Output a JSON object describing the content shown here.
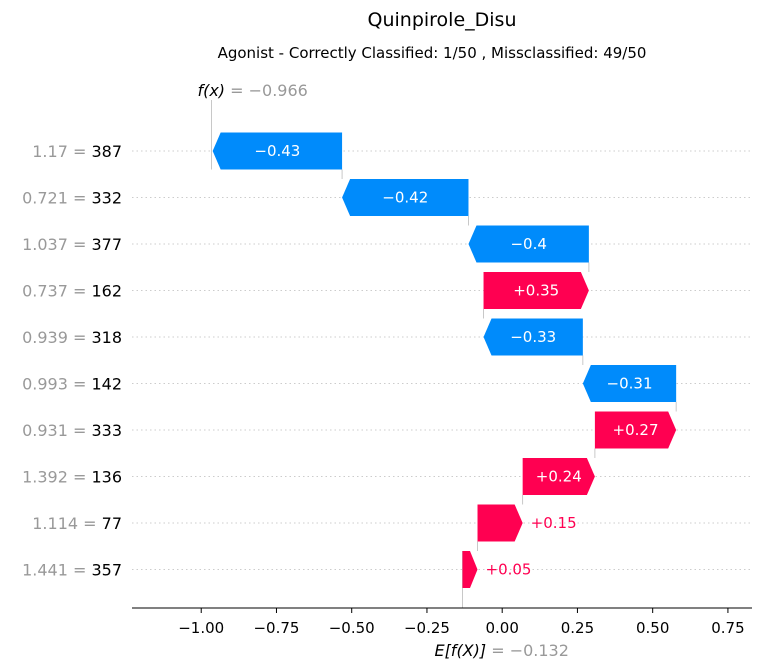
{
  "chart_data": {
    "type": "waterfall",
    "title": "Quinpirole_Disu",
    "subtitle": "Agonist - Correctly Classified: 1/50 , Missclassified: 49/50",
    "fx": {
      "label_fn": "f(x)",
      "label_rest": " = −0.966",
      "value": -0.966
    },
    "efx": {
      "label_fn": "E[f(X)]",
      "label_rest": " = −0.132",
      "value": -0.132
    },
    "xlim": [
      -1.23,
      0.83
    ],
    "xticks": [
      -1.0,
      -0.75,
      -0.5,
      -0.25,
      0.0,
      0.25,
      0.5,
      0.75
    ],
    "xtick_labels": [
      "−1.00",
      "−0.75",
      "−0.50",
      "−0.25",
      "0.00",
      "0.25",
      "0.50",
      "0.75"
    ],
    "colors": {
      "positive": "#ff0051",
      "negative": "#008bfb",
      "axis": "#000000",
      "guide": "#cccccc"
    },
    "features": [
      {
        "value": "1.17",
        "name": "387",
        "contribution": -0.43,
        "label": "−0.43"
      },
      {
        "value": "0.721",
        "name": "332",
        "contribution": -0.42,
        "label": "−0.42"
      },
      {
        "value": "1.037",
        "name": "377",
        "contribution": -0.4,
        "label": "−0.4"
      },
      {
        "value": "0.737",
        "name": "162",
        "contribution": 0.35,
        "label": "+0.35"
      },
      {
        "value": "0.939",
        "name": "318",
        "contribution": -0.33,
        "label": "−0.33"
      },
      {
        "value": "0.993",
        "name": "142",
        "contribution": -0.31,
        "label": "−0.31"
      },
      {
        "value": "0.931",
        "name": "333",
        "contribution": 0.27,
        "label": "+0.27"
      },
      {
        "value": "1.392",
        "name": "136",
        "contribution": 0.24,
        "label": "+0.24"
      },
      {
        "value": "1.114",
        "name": "77",
        "contribution": 0.15,
        "label": "+0.15"
      },
      {
        "value": "1.441",
        "name": "357",
        "contribution": 0.05,
        "label": "+0.05"
      }
    ]
  }
}
